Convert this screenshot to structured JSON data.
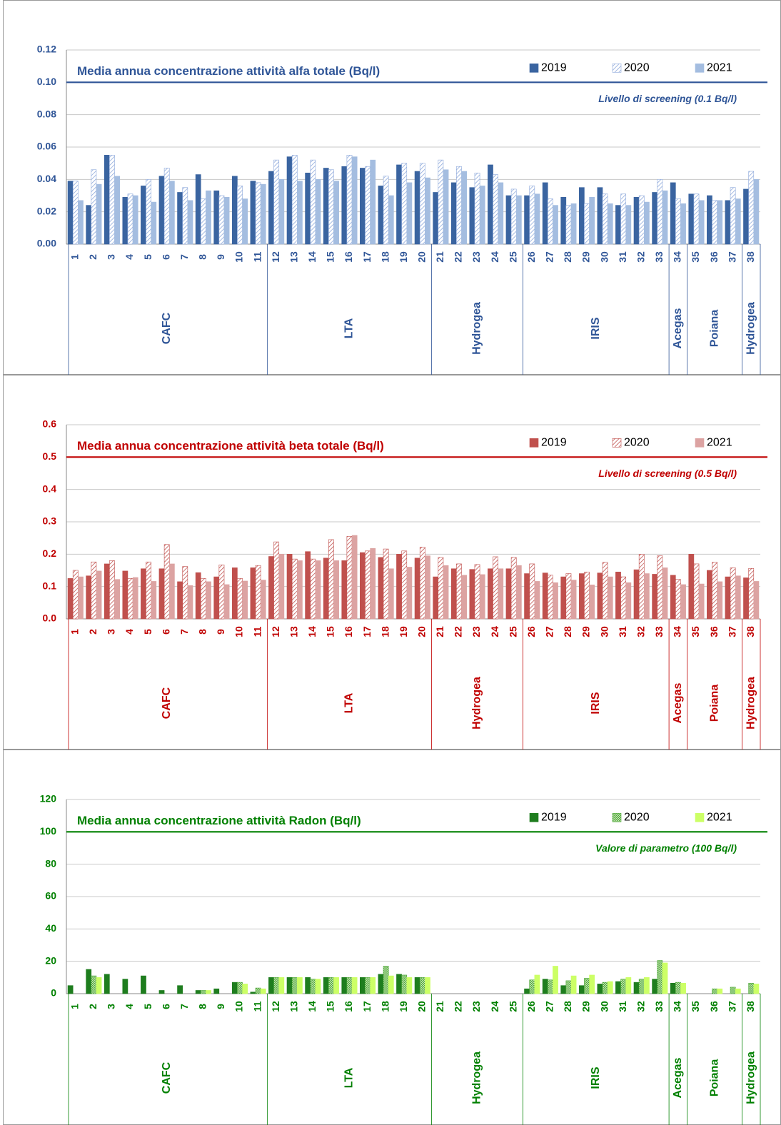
{
  "chart_data": [
    {
      "type": "bar",
      "title": "Media annua concentrazione attività alfa totale (Bq/l)",
      "color": "#2f5597",
      "categories": [
        "1",
        "2",
        "3",
        "4",
        "5",
        "6",
        "7",
        "8",
        "9",
        "10",
        "11",
        "12",
        "13",
        "14",
        "15",
        "16",
        "17",
        "18",
        "19",
        "20",
        "21",
        "22",
        "23",
        "24",
        "25",
        "26",
        "27",
        "28",
        "29",
        "30",
        "31",
        "32",
        "33",
        "34",
        "35",
        "36",
        "37",
        "38"
      ],
      "groups": [
        {
          "label": "CAFC",
          "count": 11
        },
        {
          "label": "LTA",
          "count": 9
        },
        {
          "label": "Hydrogea",
          "count": 5
        },
        {
          "label": "IRIS",
          "count": 8
        },
        {
          "label": "Acegas",
          "count": 1
        },
        {
          "label": "Poiana",
          "count": 3
        },
        {
          "label": "Hydrogea",
          "count": 1
        }
      ],
      "series": [
        {
          "name": "2019",
          "color": "#3a64a0",
          "pattern": "solid",
          "values": [
            0.039,
            0.024,
            0.055,
            0.029,
            0.036,
            0.042,
            0.032,
            0.043,
            0.033,
            0.042,
            0.039,
            0.045,
            0.054,
            0.044,
            0.047,
            0.048,
            0.047,
            0.036,
            0.049,
            0.045,
            0.032,
            0.038,
            0.035,
            0.049,
            0.03,
            0.03,
            0.038,
            0.029,
            0.035,
            0.035,
            0.024,
            0.029,
            0.032,
            0.038,
            0.031,
            0.03,
            0.027,
            0.034
          ]
        },
        {
          "name": "2020",
          "color": "#8ea9db",
          "pattern": "hatch",
          "values": [
            0.039,
            0.046,
            0.055,
            0.031,
            0.04,
            0.047,
            0.035,
            0.028,
            0.03,
            0.036,
            0.038,
            0.052,
            0.055,
            0.052,
            0.046,
            0.055,
            0.048,
            0.042,
            0.05,
            0.05,
            0.052,
            0.048,
            0.044,
            0.043,
            0.034,
            0.036,
            0.028,
            0.024,
            0.025,
            0.031,
            0.031,
            0.03,
            0.04,
            0.028,
            0.031,
            0.027,
            0.035,
            0.045
          ]
        },
        {
          "name": "2021",
          "color": "#a4bde0",
          "pattern": "solid",
          "values": [
            0.027,
            0.037,
            0.042,
            0.03,
            0.026,
            0.039,
            0.027,
            0.033,
            0.029,
            0.028,
            0.037,
            0.04,
            0.039,
            0.04,
            0.039,
            0.054,
            0.052,
            0.03,
            0.038,
            0.041,
            0.046,
            0.045,
            0.036,
            0.038,
            0.03,
            0.031,
            0.024,
            0.025,
            0.029,
            0.025,
            0.024,
            0.026,
            0.033,
            0.025,
            0.027,
            0.027,
            0.028,
            0.04
          ]
        }
      ],
      "reference": {
        "value": 0.1,
        "label": "Livello di screening (0.1 Bq/l)"
      },
      "ylim": [
        0,
        0.12
      ],
      "yticks": [
        {
          "value": 0,
          "label": "0.00"
        },
        0.02,
        0.04,
        0.06,
        0.08,
        {
          "value": 0.1,
          "label": "0.10"
        },
        0.12
      ]
    },
    {
      "type": "bar",
      "title": "Media annua concentrazione attività beta totale (Bq/l)",
      "color": "#c00000",
      "categories": [
        "1",
        "2",
        "3",
        "4",
        "5",
        "6",
        "7",
        "8",
        "9",
        "10",
        "11",
        "12",
        "13",
        "14",
        "15",
        "16",
        "17",
        "18",
        "19",
        "20",
        "21",
        "22",
        "23",
        "24",
        "25",
        "26",
        "27",
        "28",
        "29",
        "30",
        "31",
        "32",
        "33",
        "34",
        "35",
        "36",
        "37",
        "38"
      ],
      "groups": [
        {
          "label": "CAFC",
          "count": 11
        },
        {
          "label": "LTA",
          "count": 9
        },
        {
          "label": "Hydrogea",
          "count": 5
        },
        {
          "label": "IRIS",
          "count": 8
        },
        {
          "label": "Acegas",
          "count": 1
        },
        {
          "label": "Poiana",
          "count": 3
        },
        {
          "label": "Hydrogea",
          "count": 1
        }
      ],
      "series": [
        {
          "name": "2019",
          "color": "#c0504d",
          "pattern": "solid",
          "values": [
            0.125,
            0.133,
            0.17,
            0.148,
            0.155,
            0.155,
            0.115,
            0.143,
            0.13,
            0.158,
            0.158,
            0.193,
            0.2,
            0.208,
            0.188,
            0.18,
            0.205,
            0.19,
            0.2,
            0.188,
            0.13,
            0.155,
            0.153,
            0.155,
            0.155,
            0.14,
            0.142,
            0.13,
            0.14,
            0.142,
            0.145,
            0.152,
            0.138,
            0.135,
            0.2,
            0.15,
            0.13,
            0.127
          ]
        },
        {
          "name": "2020",
          "color": "#c0504d",
          "pattern": "hatch",
          "values": [
            0.15,
            0.176,
            0.18,
            0.125,
            0.176,
            0.23,
            0.162,
            0.125,
            0.167,
            0.125,
            0.165,
            0.238,
            0.185,
            0.185,
            0.245,
            0.255,
            0.21,
            0.216,
            0.21,
            0.222,
            0.19,
            0.17,
            0.168,
            0.192,
            0.19,
            0.17,
            0.135,
            0.14,
            0.145,
            0.175,
            0.13,
            0.2,
            0.195,
            0.122,
            0.17,
            0.175,
            0.158,
            0.156
          ]
        },
        {
          "name": "2021",
          "color": "#dca3a2",
          "pattern": "solid",
          "values": [
            0.13,
            0.148,
            0.122,
            0.128,
            0.116,
            0.17,
            0.103,
            0.115,
            0.106,
            0.117,
            0.12,
            0.2,
            0.18,
            0.18,
            0.18,
            0.258,
            0.218,
            0.155,
            0.16,
            0.195,
            0.165,
            0.135,
            0.137,
            0.155,
            0.165,
            0.116,
            0.112,
            0.12,
            0.105,
            0.13,
            0.112,
            0.14,
            0.158,
            0.106,
            0.108,
            0.115,
            0.133,
            0.116
          ]
        }
      ],
      "reference": {
        "value": 0.5,
        "label": "Livello di screening (0.5 Bq/l)"
      },
      "ylim": [
        0,
        0.6
      ],
      "yticks": [
        {
          "value": 0,
          "label": "0.0"
        },
        0.1,
        0.2,
        0.3,
        0.4,
        0.5,
        0.6
      ]
    },
    {
      "type": "bar",
      "title": "Media annua concentrazione attività Radon (Bq/l)",
      "color": "#008000",
      "categories": [
        "1",
        "2",
        "3",
        "4",
        "5",
        "6",
        "7",
        "8",
        "9",
        "10",
        "11",
        "12",
        "13",
        "14",
        "15",
        "16",
        "17",
        "18",
        "19",
        "20",
        "21",
        "22",
        "23",
        "24",
        "25",
        "26",
        "27",
        "28",
        "29",
        "30",
        "31",
        "32",
        "33",
        "34",
        "35",
        "36",
        "37",
        "38"
      ],
      "groups": [
        {
          "label": "CAFC",
          "count": 11
        },
        {
          "label": "LTA",
          "count": 9
        },
        {
          "label": "Hydrogea",
          "count": 5
        },
        {
          "label": "IRIS",
          "count": 8
        },
        {
          "label": "Acegas",
          "count": 1
        },
        {
          "label": "Poiana",
          "count": 3
        },
        {
          "label": "Hydrogea",
          "count": 1
        }
      ],
      "series": [
        {
          "name": "2019",
          "color": "#1e7d1e",
          "pattern": "solid",
          "values": [
            5,
            15,
            12,
            9,
            11,
            2,
            5,
            2,
            3,
            7,
            1,
            10,
            10,
            10,
            10,
            10,
            10,
            12,
            12,
            10,
            null,
            null,
            null,
            null,
            null,
            3,
            9,
            5,
            5,
            6,
            7.5,
            7,
            9,
            6.5,
            null,
            null,
            null,
            null
          ]
        },
        {
          "name": "2020",
          "color": "#4fa83a",
          "pattern": "check",
          "values": [
            null,
            11,
            null,
            null,
            null,
            null,
            null,
            2,
            null,
            7,
            3.5,
            10,
            10,
            9,
            10,
            10,
            10,
            17,
            11.5,
            10,
            null,
            null,
            null,
            null,
            null,
            8.5,
            8.5,
            8,
            9.5,
            7,
            9,
            9,
            20.5,
            7,
            null,
            3,
            4,
            6.5
          ]
        },
        {
          "name": "2021",
          "color": "#ccff66",
          "pattern": "solid",
          "values": [
            null,
            10,
            null,
            null,
            null,
            null,
            null,
            2,
            null,
            6,
            3,
            10,
            10,
            9,
            10,
            10,
            10,
            11,
            10,
            10,
            null,
            null,
            null,
            null,
            null,
            11.5,
            17,
            11,
            11.5,
            7.5,
            10,
            10,
            19,
            6.5,
            null,
            3,
            3,
            6
          ]
        }
      ],
      "reference": {
        "value": 100,
        "label": "Valore di parametro (100 Bq/l)"
      },
      "ylim": [
        0,
        120
      ],
      "yticks": [
        0,
        20,
        40,
        60,
        80,
        100,
        120
      ]
    }
  ]
}
